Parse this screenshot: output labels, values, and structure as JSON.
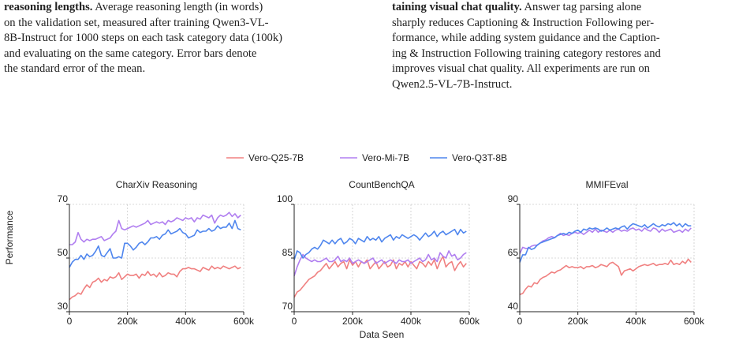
{
  "captions": {
    "left": {
      "lines": [
        {
          "bold": "reasoning lengths.",
          "text": " Average reasoning length (in words)"
        },
        {
          "bold": "",
          "text": "on the validation set, measured after training Qwen3-VL-"
        },
        {
          "bold": "",
          "text": "8B-Instruct for 1000 steps on each task category data (100k)"
        },
        {
          "bold": "",
          "text": "and evaluating on the same category.  Error bars denote"
        },
        {
          "bold": "",
          "text": "the standard error of the mean."
        }
      ]
    },
    "right": {
      "lines": [
        {
          "bold": "taining visual chat quality.",
          "text": " Answer tag parsing alone"
        },
        {
          "bold": "",
          "text": "sharply reduces Captioning & Instruction Following per-"
        },
        {
          "bold": "",
          "text": "formance, while adding system guidance and the Caption-"
        },
        {
          "bold": "",
          "text": "ing & Instruction Following training category restores and"
        },
        {
          "bold": "",
          "text": "improves visual chat quality. All experiments are run on"
        },
        {
          "bold": "",
          "text": "Qwen2.5-VL-7B-Instruct."
        }
      ]
    }
  },
  "figure": {
    "ylabel": "Performance",
    "xlabel": "Data Seen",
    "legend": [
      {
        "name": "Vero-Q25-7B",
        "color": "#f08080"
      },
      {
        "name": "Vero-Mi-7B",
        "color": "#b07ef0"
      },
      {
        "name": "Vero-Q3T-8B",
        "color": "#4f86ee"
      }
    ]
  },
  "chart_data": [
    {
      "type": "line",
      "title": "CharXiv Reasoning",
      "xlabel": "Data Seen",
      "ylabel": "Performance",
      "xlim": [
        0,
        600000
      ],
      "ylim": [
        30,
        70
      ],
      "xticks": [
        0,
        200000,
        400000,
        600000
      ],
      "xtick_labels": [
        "0",
        "200k",
        "400k",
        "600k"
      ],
      "yticks": [
        30,
        50,
        70
      ],
      "ytick_labels": [
        "30",
        "50",
        "70"
      ],
      "grid": true,
      "x": [
        0,
        10000,
        20000,
        30000,
        40000,
        50000,
        60000,
        70000,
        80000,
        90000,
        100000,
        110000,
        120000,
        130000,
        140000,
        150000,
        160000,
        170000,
        180000,
        190000,
        200000,
        210000,
        220000,
        230000,
        240000,
        250000,
        260000,
        270000,
        280000,
        290000,
        300000,
        310000,
        320000,
        330000,
        340000,
        350000,
        360000,
        370000,
        380000,
        390000,
        400000,
        410000,
        420000,
        430000,
        440000,
        450000,
        460000,
        470000,
        480000,
        490000,
        500000,
        510000,
        520000,
        530000,
        540000,
        550000,
        560000,
        570000,
        580000,
        590000
      ],
      "series": [
        {
          "name": "Vero-Q25-7B",
          "color": "#f08080",
          "values": [
            34.5,
            35.5,
            36,
            37,
            36.5,
            38.5,
            40,
            39,
            41,
            41.5,
            42.5,
            41,
            42,
            41.5,
            43,
            42.5,
            43,
            44.5,
            42,
            43,
            44,
            43.5,
            43.5,
            44,
            42.5,
            44,
            43.5,
            45,
            43.5,
            44,
            43,
            44.5,
            43,
            43.5,
            44.5,
            44,
            44,
            43,
            45,
            46,
            46,
            46.5,
            46,
            46,
            45.5,
            45,
            46.5,
            46,
            45.5,
            47,
            46,
            46.5,
            46,
            47,
            46.5,
            46,
            46.5,
            47,
            46,
            46.5
          ]
        },
        {
          "name": "Vero-Mi-7B",
          "color": "#b07ef0",
          "values": [
            55,
            55,
            56,
            59.5,
            57,
            56,
            57,
            56.5,
            57,
            57,
            57.5,
            58,
            56.5,
            57,
            57.5,
            59,
            60,
            64,
            61,
            60.5,
            61,
            61.5,
            62,
            61.5,
            62,
            62.5,
            63,
            64,
            62.5,
            63,
            63.5,
            63,
            63.5,
            62.5,
            64,
            63.5,
            64,
            65,
            64.5,
            64,
            65,
            64.5,
            65,
            63.5,
            65,
            64.5,
            66,
            65.5,
            65,
            66,
            63,
            65,
            66,
            65.5,
            66,
            67,
            65.5,
            66.5,
            65,
            66
          ]
        },
        {
          "name": "Vero-Q3T-8B",
          "color": "#4f86ee",
          "values": [
            46.5,
            48.5,
            49.5,
            49.5,
            51,
            49.5,
            51.5,
            50.5,
            51,
            52.5,
            54.5,
            51,
            50.5,
            52,
            53.5,
            50,
            50,
            50.5,
            50,
            55.5,
            55.5,
            54.5,
            53,
            54,
            55.5,
            56,
            55,
            56,
            57.5,
            57.5,
            58,
            57,
            58.5,
            59,
            60.5,
            59,
            59.5,
            60,
            61,
            59.5,
            59,
            57.5,
            58,
            58.5,
            60.5,
            59.5,
            60,
            60,
            61,
            60,
            60.5,
            62,
            61,
            61.5,
            61.5,
            63,
            61,
            64,
            61,
            60.5
          ]
        }
      ]
    },
    {
      "type": "line",
      "title": "CountBenchQA",
      "xlabel": "Data Seen",
      "ylabel": "Performance",
      "xlim": [
        0,
        600000
      ],
      "ylim": [
        70,
        100
      ],
      "xticks": [
        0,
        200000,
        400000,
        600000
      ],
      "xtick_labels": [
        "0",
        "200k",
        "400k",
        "600k"
      ],
      "yticks": [
        70,
        85,
        100
      ],
      "ytick_labels": [
        "70",
        "85",
        "100"
      ],
      "grid": true,
      "x": [
        0,
        10000,
        20000,
        30000,
        40000,
        50000,
        60000,
        70000,
        80000,
        90000,
        100000,
        110000,
        120000,
        130000,
        140000,
        150000,
        160000,
        170000,
        180000,
        190000,
        200000,
        210000,
        220000,
        230000,
        240000,
        250000,
        260000,
        270000,
        280000,
        290000,
        300000,
        310000,
        320000,
        330000,
        340000,
        350000,
        360000,
        370000,
        380000,
        390000,
        400000,
        410000,
        420000,
        430000,
        440000,
        450000,
        460000,
        470000,
        480000,
        490000,
        500000,
        510000,
        520000,
        530000,
        540000,
        550000,
        560000,
        570000,
        580000,
        590000
      ],
      "series": [
        {
          "name": "Vero-Q25-7B",
          "color": "#f08080",
          "values": [
            74,
            75.5,
            76,
            77,
            78,
            79,
            79.5,
            80,
            81,
            81.5,
            82.5,
            83.5,
            82,
            83,
            84,
            82.5,
            83.5,
            84,
            82,
            84.5,
            83,
            84,
            82.5,
            84,
            83.5,
            84.5,
            82,
            83,
            84,
            82,
            83,
            84,
            82.5,
            83,
            84.5,
            82,
            83.5,
            83,
            84,
            82.5,
            84,
            83,
            82,
            84,
            83.5,
            82.5,
            84,
            83,
            84.5,
            82,
            84,
            85.5,
            82.5,
            83.5,
            84,
            81.5,
            83,
            84,
            82.5,
            83.5
          ]
        },
        {
          "name": "Vero-Mi-7B",
          "color": "#b07ef0",
          "values": [
            80,
            82.5,
            84.5,
            86,
            85,
            84.5,
            84,
            84.5,
            84,
            84,
            84.5,
            85,
            84,
            84,
            84.5,
            85.5,
            84,
            84.5,
            84,
            85,
            83.5,
            84,
            84.5,
            84,
            83.5,
            84,
            84.5,
            85,
            83.5,
            84,
            84.5,
            83.5,
            84,
            84.5,
            84,
            83.5,
            84.5,
            84,
            84,
            84.5,
            83.5,
            84,
            84.5,
            85,
            84,
            84.5,
            86,
            84.5,
            85,
            84,
            86.5,
            85.5,
            85,
            87,
            85.5,
            86,
            84.5,
            85,
            86,
            86.5
          ]
        },
        {
          "name": "Vero-Q3T-8B",
          "color": "#4f86ee",
          "values": [
            84.5,
            87,
            86.5,
            85,
            86,
            86.5,
            87.5,
            88,
            87.5,
            88.5,
            90,
            89.5,
            89,
            90,
            89,
            90,
            90.5,
            89,
            89.5,
            90.5,
            90,
            89,
            90.5,
            90,
            89.5,
            91,
            90,
            90.5,
            90,
            91,
            89.5,
            90.5,
            91,
            91.5,
            90,
            91,
            90.5,
            91.5,
            91,
            90.5,
            91,
            91.5,
            91,
            90,
            91,
            92,
            91,
            91.5,
            92.5,
            91,
            92,
            92.5,
            91.5,
            92,
            92.5,
            93,
            91.5,
            93,
            92,
            92.5
          ]
        }
      ]
    },
    {
      "type": "line",
      "title": "MMIFEval",
      "xlabel": "Data Seen",
      "ylabel": "Performance",
      "xlim": [
        0,
        600000
      ],
      "ylim": [
        40,
        90
      ],
      "xticks": [
        0,
        200000,
        400000,
        600000
      ],
      "xtick_labels": [
        "0",
        "200k",
        "400k",
        "600k"
      ],
      "yticks": [
        40,
        65,
        90
      ],
      "ytick_labels": [
        "40",
        "65",
        "90"
      ],
      "grid": true,
      "x": [
        0,
        10000,
        20000,
        30000,
        40000,
        50000,
        60000,
        70000,
        80000,
        90000,
        100000,
        110000,
        120000,
        130000,
        140000,
        150000,
        160000,
        170000,
        180000,
        190000,
        200000,
        210000,
        220000,
        230000,
        240000,
        250000,
        260000,
        270000,
        280000,
        290000,
        300000,
        310000,
        320000,
        330000,
        340000,
        350000,
        360000,
        370000,
        380000,
        390000,
        400000,
        410000,
        420000,
        430000,
        440000,
        450000,
        460000,
        470000,
        480000,
        490000,
        500000,
        510000,
        520000,
        530000,
        540000,
        550000,
        560000,
        570000,
        580000,
        590000
      ],
      "series": [
        {
          "name": "Vero-Q25-7B",
          "color": "#f08080",
          "values": [
            48,
            48.5,
            50.5,
            52,
            51.5,
            53.5,
            53,
            55,
            56,
            56.5,
            57.5,
            58.5,
            58,
            59,
            59.5,
            60.5,
            61.5,
            60.5,
            61,
            60.5,
            60.5,
            61,
            60,
            61,
            61,
            61.5,
            60.5,
            61,
            62,
            61.5,
            61,
            62.5,
            63,
            62,
            61,
            57,
            59,
            59.5,
            60,
            59,
            60,
            61,
            61.5,
            62,
            61.5,
            62,
            62.5,
            61.5,
            62,
            62,
            62.5,
            62,
            64,
            62,
            62.5,
            62,
            63.5,
            62.5,
            64.5,
            63
          ]
        },
        {
          "name": "Vero-Mi-7B",
          "color": "#b07ef0",
          "values": [
            67,
            70,
            69.5,
            69.5,
            70.5,
            71,
            71,
            72,
            73,
            73.5,
            74.5,
            75,
            74.5,
            75.5,
            76.5,
            75.5,
            76,
            75.5,
            76.5,
            77,
            76.5,
            77,
            76,
            77,
            78,
            77,
            78.5,
            77,
            78,
            77.5,
            77,
            78,
            77,
            78,
            78.5,
            77.5,
            78,
            77.5,
            78.5,
            79,
            78,
            78.5,
            77.5,
            79,
            78,
            77.5,
            79,
            78.5,
            77,
            78.5,
            77.5,
            78,
            78.5,
            77,
            77.5,
            78,
            77,
            78.5,
            77.5,
            79
          ]
        },
        {
          "name": "Vero-Q3T-8B",
          "color": "#4f86ee",
          "values": [
            63,
            66.5,
            66.5,
            70,
            69,
            69.5,
            71,
            72,
            72.5,
            73,
            73.5,
            74,
            74.5,
            75.5,
            76,
            76.5,
            76,
            77,
            76.5,
            77.5,
            78,
            77,
            78.5,
            78,
            79,
            78.5,
            79,
            78.5,
            77.5,
            78,
            79,
            78,
            78.5,
            79,
            78.5,
            79.5,
            80,
            78.5,
            80,
            81,
            80.5,
            80,
            79.5,
            80.5,
            79,
            80,
            81,
            80,
            79.5,
            80.5,
            80,
            81,
            80.5,
            81.5,
            80,
            81,
            79.5,
            81,
            80,
            80
          ]
        }
      ]
    }
  ]
}
